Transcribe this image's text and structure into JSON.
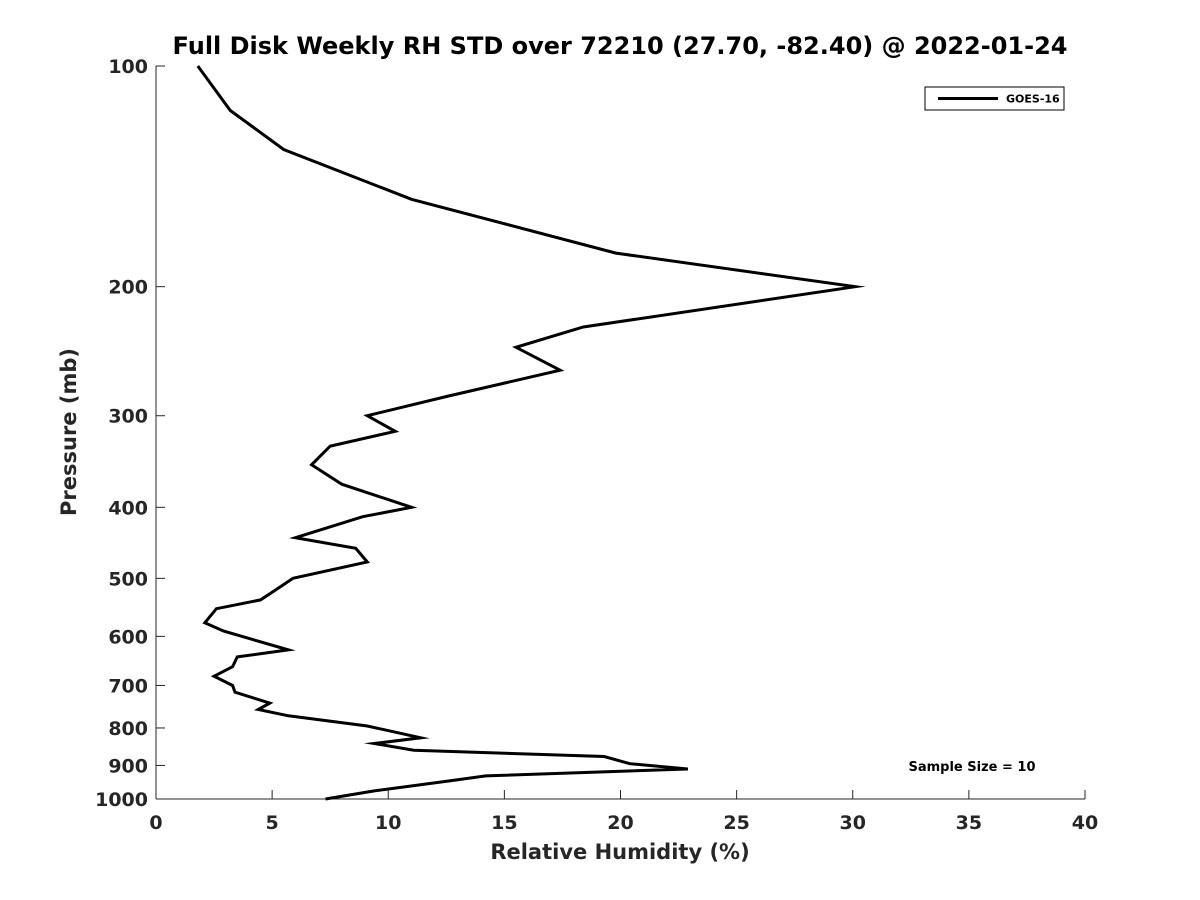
{
  "chart_data": {
    "type": "line",
    "title": "Full Disk Weekly RH STD over 72210 (27.70, -82.40) @ 2022-01-24",
    "xlabel": "Relative Humidity (%)",
    "ylabel": "Pressure (mb)",
    "xlim": [
      0,
      40
    ],
    "ylim": [
      100,
      1000
    ],
    "y_scale": "log",
    "y_reversed": true,
    "grid": false,
    "legend_position": "top-right",
    "x_ticks": [
      0,
      5,
      10,
      15,
      20,
      25,
      30,
      35,
      40
    ],
    "x_tick_labels": [
      "0",
      "5",
      "10",
      "15",
      "20",
      "25",
      "30",
      "35",
      "40"
    ],
    "y_ticks": [
      100,
      200,
      300,
      400,
      500,
      600,
      700,
      800,
      900,
      1000
    ],
    "y_tick_labels": [
      "100",
      "200",
      "300",
      "400",
      "500",
      "600",
      "700",
      "800",
      "900",
      "1000"
    ],
    "series": [
      {
        "name": "GOES-16",
        "color": "#000000",
        "x": [
          1.8,
          3.2,
          5.5,
          11.0,
          19.8,
          30.1,
          18.4,
          15.5,
          17.4,
          12.6,
          9.1,
          10.3,
          7.5,
          6.7,
          8.0,
          11.0,
          8.9,
          6.0,
          8.6,
          9.1,
          5.9,
          5.1,
          4.5,
          2.6,
          2.1,
          2.9,
          5.7,
          3.5,
          3.3,
          2.5,
          3.3,
          3.4,
          4.9,
          4.4,
          5.7,
          9.1,
          11.4,
          9.4,
          11.1,
          19.3,
          20.4,
          22.9,
          14.2,
          12.6,
          9.4,
          7.3
        ],
        "y": [
          100,
          115,
          130,
          152,
          180,
          200,
          227,
          242,
          260,
          282,
          300,
          315,
          330,
          350,
          372,
          400,
          412,
          440,
          455,
          475,
          500,
          520,
          535,
          550,
          575,
          590,
          626,
          640,
          660,
          680,
          700,
          715,
          740,
          755,
          770,
          795,
          825,
          840,
          858,
          875,
          895,
          910,
          930,
          945,
          975,
          1000
        ]
      }
    ],
    "annotations": [
      "Sample Size = 10"
    ]
  }
}
